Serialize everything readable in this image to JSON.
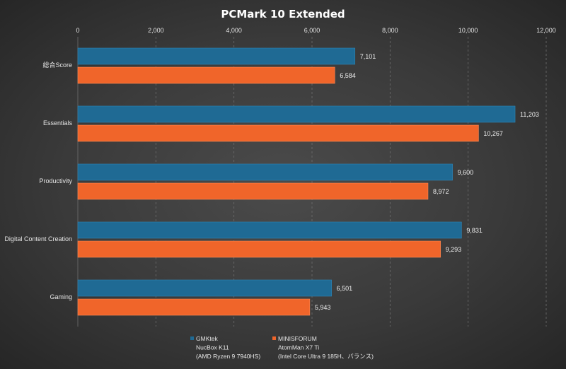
{
  "chart_data": {
    "type": "bar",
    "orientation": "horizontal",
    "title": "PCMark  10 Extended",
    "categories": [
      "総合Score",
      "Essentials",
      "Productivity",
      "Digital Content Creation",
      "Gaming"
    ],
    "series": [
      {
        "name_lines": [
          "GMKtek",
          "NucBox K11",
          "(AMD Ryzen 9 7940HS)"
        ],
        "color": "#1f6a94",
        "values": [
          7101,
          11203,
          9600,
          9831,
          6501
        ],
        "labels": [
          "7,101",
          "11,203",
          "9,600",
          "9,831",
          "6,501"
        ]
      },
      {
        "name_lines": [
          "MINISFORUM",
          "AtomMan X7 Ti",
          "(Intel Core Ultra 9 185H、バランス)"
        ],
        "color": "#f0652a",
        "values": [
          6584,
          10267,
          8972,
          9293,
          5943
        ],
        "labels": [
          "6,584",
          "10,267",
          "8,972",
          "9,293",
          "5,943"
        ]
      }
    ],
    "xlim": [
      0,
      12000
    ],
    "ticks": [
      0,
      2000,
      4000,
      6000,
      8000,
      10000,
      12000
    ],
    "tick_labels": [
      "0",
      "2,000",
      "4,000",
      "6,000",
      "8,000",
      "10,000",
      "12,000"
    ],
    "axis_position": "top",
    "grid": true,
    "legend": "bottom"
  }
}
